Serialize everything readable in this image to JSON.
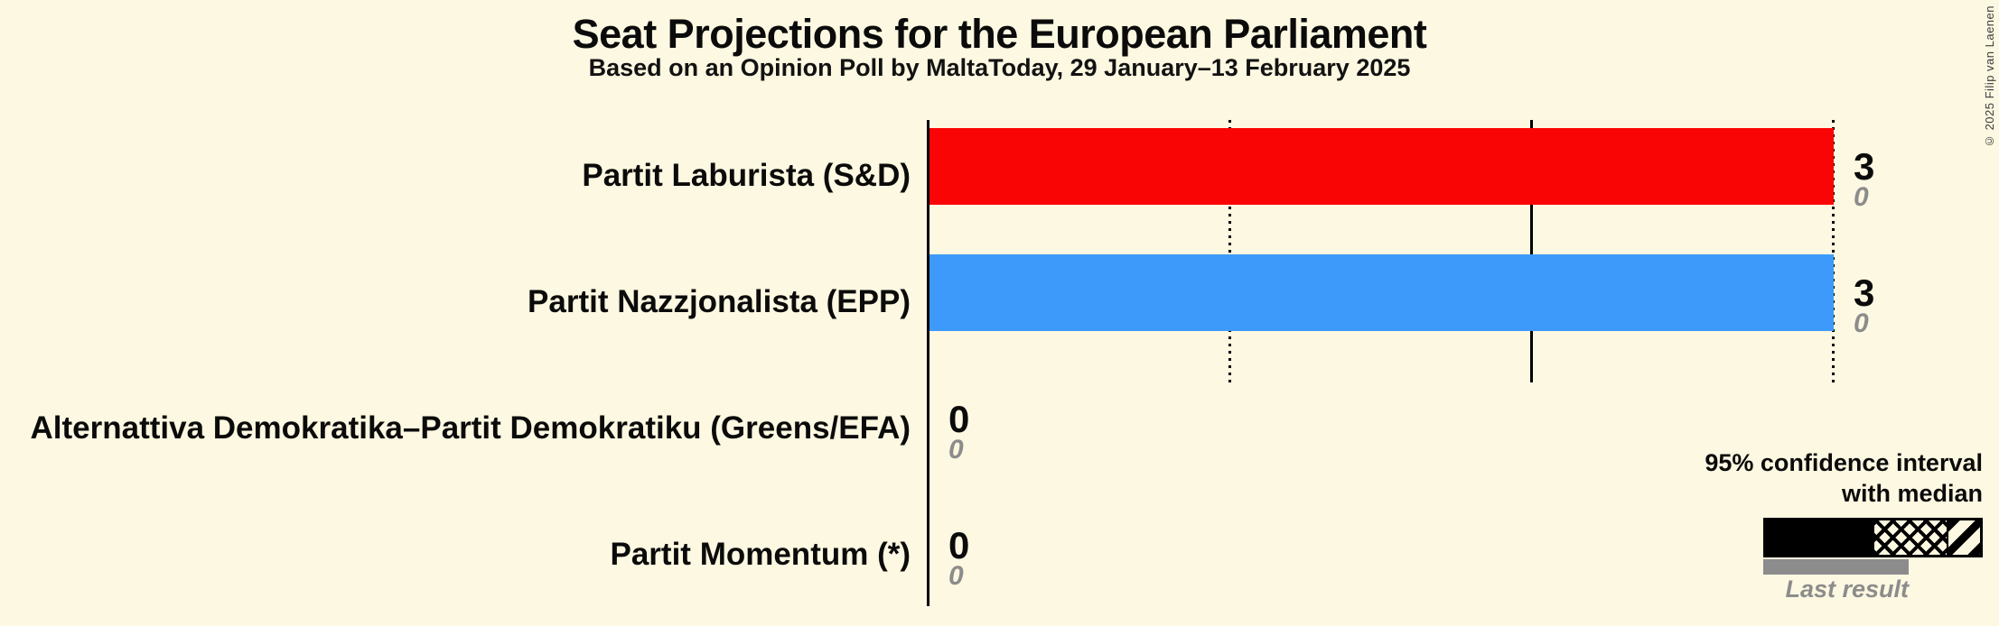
{
  "header": {
    "title": "Seat Projections for the European Parliament",
    "subtitle": "Based on an Opinion Poll by MaltaToday, 29 January–13 February 2025"
  },
  "watermark": {
    "copyright": "© 2025 Filip van Laenen"
  },
  "legend": {
    "ci_line1": "95% confidence interval",
    "ci_line2": "with median",
    "last_result_label": "Last result"
  },
  "colors": {
    "background": "#FDF8E1",
    "labour_red": "#FA0505",
    "nationalist_blue": "#3E9AFA",
    "last_result_gray": "#8C8C8C",
    "text": "#0b0b0b"
  },
  "chart_data": {
    "type": "bar",
    "orientation": "horizontal",
    "title": "Seat Projections for the European Parliament",
    "subtitle": "Based on an Opinion Poll by MaltaToday, 29 January–13 February 2025",
    "x_axis": {
      "unit": "seats",
      "min": 0,
      "max": 3.55,
      "gridlines": [
        {
          "seats": 1,
          "style": "dotted"
        },
        {
          "seats": 2,
          "style": "solid"
        },
        {
          "seats": 3,
          "style": "dotted"
        }
      ]
    },
    "legend_note": "95% confidence interval with median; gray underbar = last result",
    "categories": [
      "Partit Laburista (S&D)",
      "Partit Nazzjonalista (EPP)",
      "Alternattiva Demokratika–Partit Demokratiku (Greens/EFA)",
      "Partit Momentum (*)"
    ],
    "series": [
      {
        "name": "Median projected seats",
        "values": [
          3,
          3,
          0,
          0
        ]
      },
      {
        "name": "Last result",
        "values": [
          0,
          0,
          0,
          0
        ]
      }
    ],
    "rows": [
      {
        "party": "Partit Laburista (S&D)",
        "median_seats": 3,
        "ci95_low": 3,
        "ci95_high": 3,
        "last_result": 0,
        "color": "#FA0505"
      },
      {
        "party": "Partit Nazzjonalista (EPP)",
        "median_seats": 3,
        "ci95_low": 3,
        "ci95_high": 3,
        "last_result": 0,
        "color": "#3E9AFA"
      },
      {
        "party": "Alternattiva Demokratika–Partit Demokratiku (Greens/EFA)",
        "median_seats": 0,
        "ci95_low": 0,
        "ci95_high": 0,
        "last_result": 0,
        "color": null
      },
      {
        "party": "Partit Momentum (*)",
        "median_seats": 0,
        "ci95_low": 0,
        "ci95_high": 0,
        "last_result": 0,
        "color": null
      }
    ]
  }
}
